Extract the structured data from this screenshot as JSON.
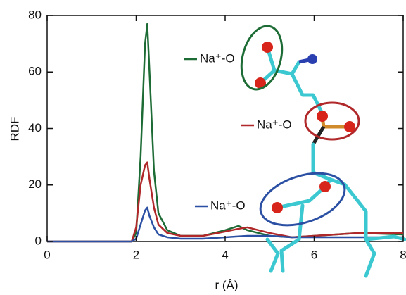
{
  "chart_data": {
    "type": "line",
    "xlabel": "r (Å)",
    "ylabel": "RDF",
    "x": [
      0,
      1,
      1.9,
      2.0,
      2.1,
      2.2,
      2.25,
      2.3,
      2.4,
      2.5,
      2.7,
      3.0,
      3.5,
      4.0,
      4.3,
      4.5,
      5.0,
      5.5,
      6.0,
      7.0,
      8.0
    ],
    "series": [
      {
        "name": "Na⁺-O",
        "color": "#1d6b35",
        "values": [
          0,
          0,
          0,
          3,
          30,
          70,
          77,
          60,
          25,
          10,
          4,
          2,
          2,
          4,
          5.5,
          4,
          2,
          1.5,
          2,
          3,
          2.5
        ]
      },
      {
        "name": "Na⁺-O",
        "color": "#b0282a",
        "values": [
          0,
          0,
          0,
          5,
          20,
          27,
          28,
          22,
          12,
          6,
          3,
          2,
          2,
          3.5,
          4.5,
          5,
          3,
          1.5,
          2,
          3,
          3
        ]
      },
      {
        "name": "Na⁺-O",
        "color": "#2a4fa3",
        "values": [
          0,
          0,
          0,
          1,
          6,
          11,
          12,
          9,
          5,
          2.5,
          1.5,
          1,
          1,
          1.5,
          1.8,
          2,
          2,
          1.5,
          1.5,
          1.5,
          1.5
        ]
      }
    ],
    "xlim": [
      0,
      8
    ],
    "xticks": [
      0,
      2,
      4,
      6,
      8
    ],
    "ylim": [
      0,
      80
    ],
    "yticks": [
      0,
      20,
      40,
      60,
      80
    ]
  }
}
